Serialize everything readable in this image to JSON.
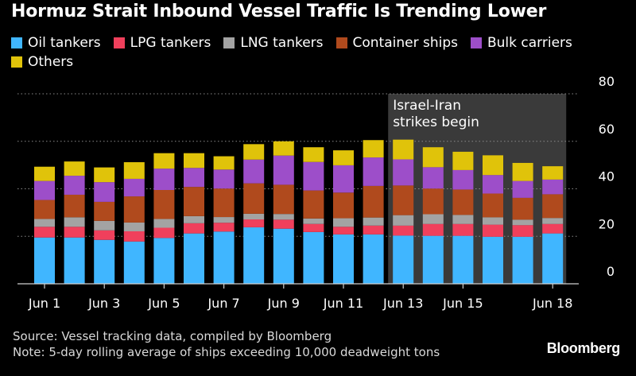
{
  "chart_data": {
    "type": "bar",
    "stacked": true,
    "title": "Hormuz Strait Inbound Vessel Traffic Is Trending Lower",
    "xlabel": "",
    "ylabel": "",
    "ylim": [
      0,
      80
    ],
    "yticks": [
      "80",
      "60",
      "40",
      "20",
      "0"
    ],
    "xtick_labels": [
      "Jun 1",
      "Jun 3",
      "Jun 5",
      "Jun 7",
      "Jun 9",
      "Jun 11",
      "Jun 13",
      "Jun 15",
      "Jun 18"
    ],
    "categories": [
      "Jun 1",
      "Jun 2",
      "Jun 3",
      "Jun 4",
      "Jun 5",
      "Jun 6",
      "Jun 7",
      "Jun 8",
      "Jun 9",
      "Jun 10",
      "Jun 11",
      "Jun 12",
      "Jun 13",
      "Jun 14",
      "Jun 15",
      "Jun 16",
      "Jun 17",
      "Jun 18"
    ],
    "series": [
      {
        "name": "Oil tankers",
        "color": "#40b6ff",
        "values": [
          19.5,
          19.5,
          18.5,
          17.8,
          19.3,
          21.2,
          22,
          23.8,
          23.2,
          21.8,
          20.8,
          20.8,
          20.3,
          20.2,
          20.2,
          19.8,
          19.8,
          21.2
        ]
      },
      {
        "name": "LPG tankers",
        "color": "#f0405c",
        "values": [
          4.5,
          4.5,
          4,
          4.3,
          4.3,
          4.3,
          3.7,
          3.3,
          3.8,
          3.4,
          3.2,
          3.7,
          4.2,
          5,
          5,
          5.1,
          4.9,
          4
        ]
      },
      {
        "name": "LNG tankers",
        "color": "#a3a3a3",
        "values": [
          3.3,
          4,
          4,
          3.7,
          3.7,
          3,
          2.4,
          2.4,
          2.4,
          2.3,
          3.6,
          3.4,
          4.4,
          4.1,
          3.8,
          3.1,
          2.3,
          2.5
        ]
      },
      {
        "name": "Container ships",
        "color": "#b04a1d",
        "values": [
          8,
          9.5,
          8,
          11,
          12.2,
          12.3,
          12,
          12.8,
          12.3,
          11.8,
          10.8,
          13.3,
          12.5,
          10.8,
          10.7,
          10,
          9.2,
          10
        ]
      },
      {
        "name": "Bulk carriers",
        "color": "#9d4ec9",
        "values": [
          8,
          8,
          8.3,
          7.4,
          9,
          8,
          8,
          10,
          12.3,
          12,
          11.5,
          12,
          11,
          9,
          8.2,
          7.8,
          7.1,
          6.2
        ]
      },
      {
        "name": "Others",
        "color": "#e0c30a",
        "values": [
          6,
          6,
          6.2,
          7,
          6.5,
          6.2,
          5.6,
          6.5,
          6,
          6.2,
          6.3,
          7.3,
          8.3,
          8.4,
          7.7,
          8.3,
          7.6,
          5.6
        ]
      }
    ],
    "annotation": {
      "line1": "Israel-Iran",
      "line2": "strikes begin",
      "start_category": "Jun 13",
      "end_category": "Jun 18"
    },
    "grid": true,
    "legend_position": "top"
  },
  "footer": {
    "source": "Source: Vessel tracking data, compiled by Bloomberg",
    "note": "Note: 5-day rolling average of ships exceeding 10,000 deadweight tons"
  },
  "brand": "Bloomberg"
}
